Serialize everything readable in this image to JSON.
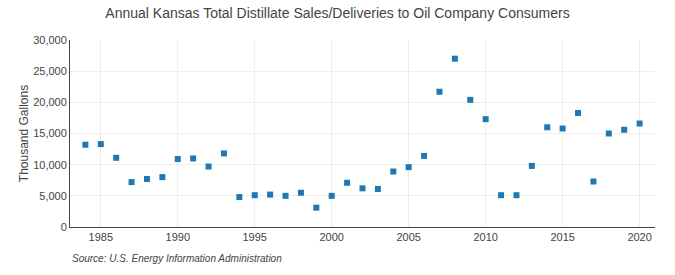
{
  "chart_data": {
    "type": "scatter",
    "title": "Annual Kansas Total Distillate Sales/Deliveries to Oil Company Consumers",
    "ylabel": "Thousand Gallons",
    "source": "Source: U.S. Energy Information Administration",
    "marker": "square",
    "x": [
      1984,
      1985,
      1986,
      1987,
      1988,
      1989,
      1990,
      1991,
      1992,
      1993,
      1994,
      1995,
      1996,
      1997,
      1998,
      1999,
      2000,
      2001,
      2002,
      2003,
      2004,
      2005,
      2006,
      2007,
      2008,
      2009,
      2010,
      2011,
      2012,
      2013,
      2014,
      2015,
      2016,
      2017,
      2018,
      2019,
      2020
    ],
    "values": [
      13200,
      13300,
      11100,
      7200,
      7700,
      8000,
      10900,
      11000,
      9700,
      11800,
      4800,
      5100,
      5200,
      5000,
      5500,
      3100,
      5000,
      7100,
      6200,
      6100,
      8900,
      9600,
      11400,
      21700,
      27000,
      20400,
      17300,
      5100,
      5100,
      9800,
      16000,
      15800,
      18300,
      7300,
      15000,
      15600,
      16600
    ],
    "xlim": [
      1983,
      2021
    ],
    "xticks": [
      1985,
      1990,
      1995,
      2000,
      2005,
      2010,
      2015,
      2020
    ],
    "ylim": [
      0,
      30000
    ],
    "yticks": [
      0,
      {
        "value": 5000,
        "label": "5,000"
      },
      {
        "value": 10000,
        "label": "10,000"
      },
      {
        "value": 15000,
        "label": "15,000"
      },
      {
        "value": 20000,
        "label": "20,000"
      },
      {
        "value": 25000,
        "label": "25,000"
      },
      {
        "value": 30000,
        "label": "30,000"
      }
    ],
    "grid": true
  }
}
